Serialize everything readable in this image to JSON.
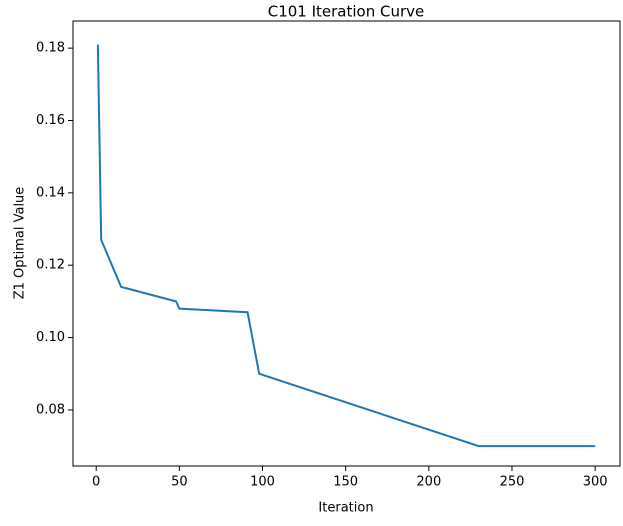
{
  "chart_data": {
    "type": "line",
    "title": "C101 Iteration Curve",
    "xlabel": "Iteration",
    "ylabel": "Z1 Optimal Value",
    "x": [
      1,
      3,
      15,
      48,
      50,
      91,
      98,
      230,
      300
    ],
    "series": [
      {
        "color": "#1f77b4",
        "values": [
          0.181,
          0.127,
          0.114,
          0.11,
          0.108,
          0.107,
          0.09,
          0.07,
          0.07
        ]
      }
    ],
    "xlim": [
      -13.95,
      314.95
    ],
    "xticks": [
      0,
      50,
      100,
      150,
      200,
      250,
      300
    ],
    "ylim": [
      0.0645,
      0.1875
    ],
    "yticks": [
      {
        "value": 0.08,
        "label": "0.08"
      },
      {
        "value": 0.1,
        "label": "0.10"
      },
      {
        "value": 0.12,
        "label": "0.12"
      },
      {
        "value": 0.14,
        "label": "0.14"
      },
      {
        "value": 0.16,
        "label": "0.16"
      },
      {
        "value": 0.18,
        "label": "0.18"
      }
    ]
  }
}
